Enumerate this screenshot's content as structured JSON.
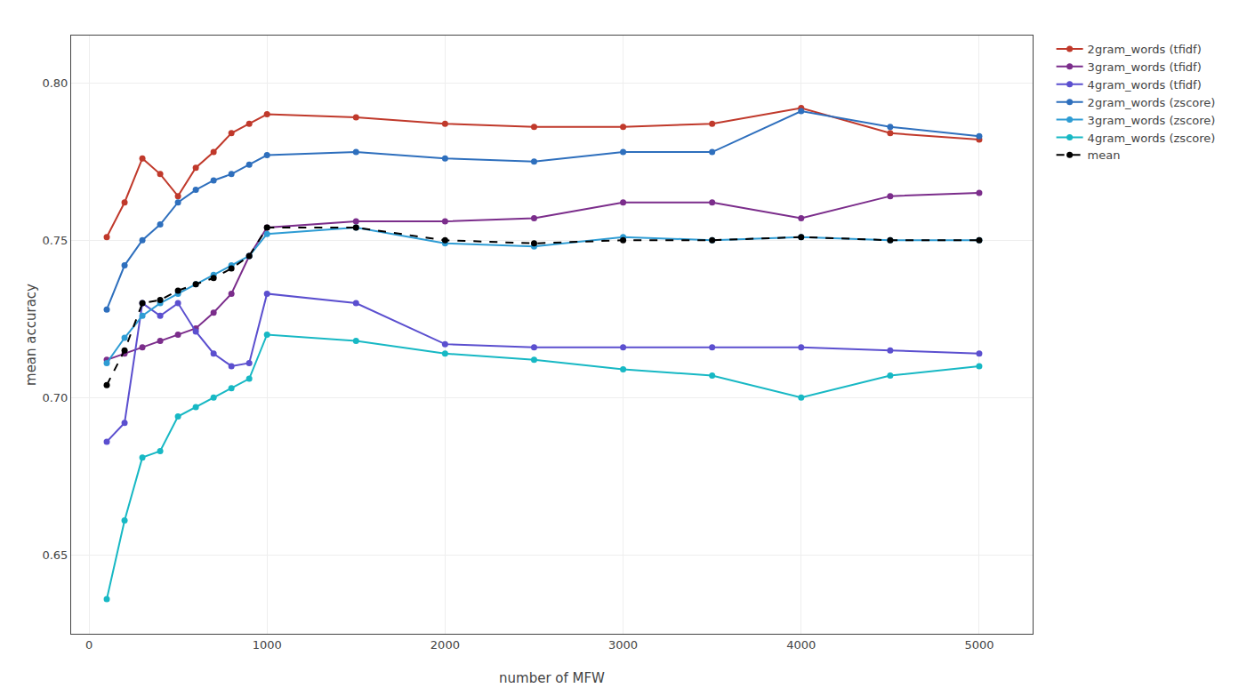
{
  "chart_data": {
    "type": "line",
    "x_label": "number of MFW",
    "y_label": "mean accuracy",
    "x": [
      100,
      200,
      300,
      400,
      500,
      600,
      700,
      800,
      900,
      1000,
      1500,
      2000,
      2500,
      3000,
      3500,
      4000,
      4500,
      5000
    ],
    "series": [
      {
        "name": "2gram_words (tfidf)",
        "color": "#c0392b",
        "marker": "circle",
        "line_style": "solid",
        "values": [
          0.751,
          0.762,
          0.776,
          0.771,
          0.764,
          0.773,
          0.778,
          0.784,
          0.787,
          0.79,
          0.789,
          0.787,
          0.786,
          0.786,
          0.787,
          0.792,
          0.784,
          0.782
        ]
      },
      {
        "name": "3gram_words (tfidf)",
        "color": "#7b2d8b",
        "marker": "circle",
        "line_style": "solid",
        "values": [
          0.712,
          0.714,
          0.716,
          0.718,
          0.72,
          0.722,
          0.727,
          0.733,
          0.745,
          0.754,
          0.756,
          0.756,
          0.757,
          0.762,
          0.762,
          0.757,
          0.764,
          0.765
        ]
      },
      {
        "name": "4gram_words (tfidf)",
        "color": "#5b4fcf",
        "marker": "circle",
        "line_style": "solid",
        "values": [
          0.686,
          0.692,
          0.73,
          0.726,
          0.73,
          0.721,
          0.714,
          0.71,
          0.711,
          0.733,
          0.73,
          0.717,
          0.716,
          0.716,
          0.716,
          0.716,
          0.715,
          0.714
        ]
      },
      {
        "name": "2gram_words (zscore)",
        "color": "#2e6fbd",
        "marker": "circle",
        "line_style": "solid",
        "values": [
          0.728,
          0.742,
          0.75,
          0.755,
          0.762,
          0.766,
          0.769,
          0.771,
          0.774,
          0.777,
          0.778,
          0.776,
          0.775,
          0.778,
          0.778,
          0.791,
          0.786,
          0.783
        ]
      },
      {
        "name": "3gram_words (zscore)",
        "color": "#2e9cd4",
        "marker": "circle",
        "line_style": "solid",
        "values": [
          0.711,
          0.719,
          0.726,
          0.73,
          0.733,
          0.736,
          0.739,
          0.742,
          0.745,
          0.752,
          0.754,
          0.749,
          0.748,
          0.751,
          0.75,
          0.751,
          0.75,
          0.75
        ]
      },
      {
        "name": "4gram_words (zscore)",
        "color": "#17b8c4",
        "marker": "circle",
        "line_style": "solid",
        "values": [
          0.636,
          0.661,
          0.681,
          0.683,
          0.694,
          0.697,
          0.7,
          0.703,
          0.706,
          0.72,
          0.718,
          0.714,
          0.712,
          0.709,
          0.707,
          0.7,
          0.707,
          0.71
        ]
      },
      {
        "name": "mean",
        "color": "#000000",
        "marker": "circle",
        "line_style": "dashed",
        "values": [
          0.704,
          0.715,
          0.73,
          0.731,
          0.734,
          0.736,
          0.738,
          0.741,
          0.745,
          0.754,
          0.754,
          0.75,
          0.749,
          0.75,
          0.75,
          0.751,
          0.75,
          0.75
        ]
      }
    ],
    "xlim": [
      -100,
      5300
    ],
    "xticks": [
      0,
      1000,
      2000,
      3000,
      4000,
      5000
    ],
    "ylim": [
      0.625,
      0.815
    ],
    "yticks": [
      0.65,
      {
        "value": 0.7,
        "label": "0.70"
      },
      0.75,
      {
        "value": 0.8,
        "label": "0.80"
      }
    ],
    "grid": true,
    "legend": "upper right"
  }
}
